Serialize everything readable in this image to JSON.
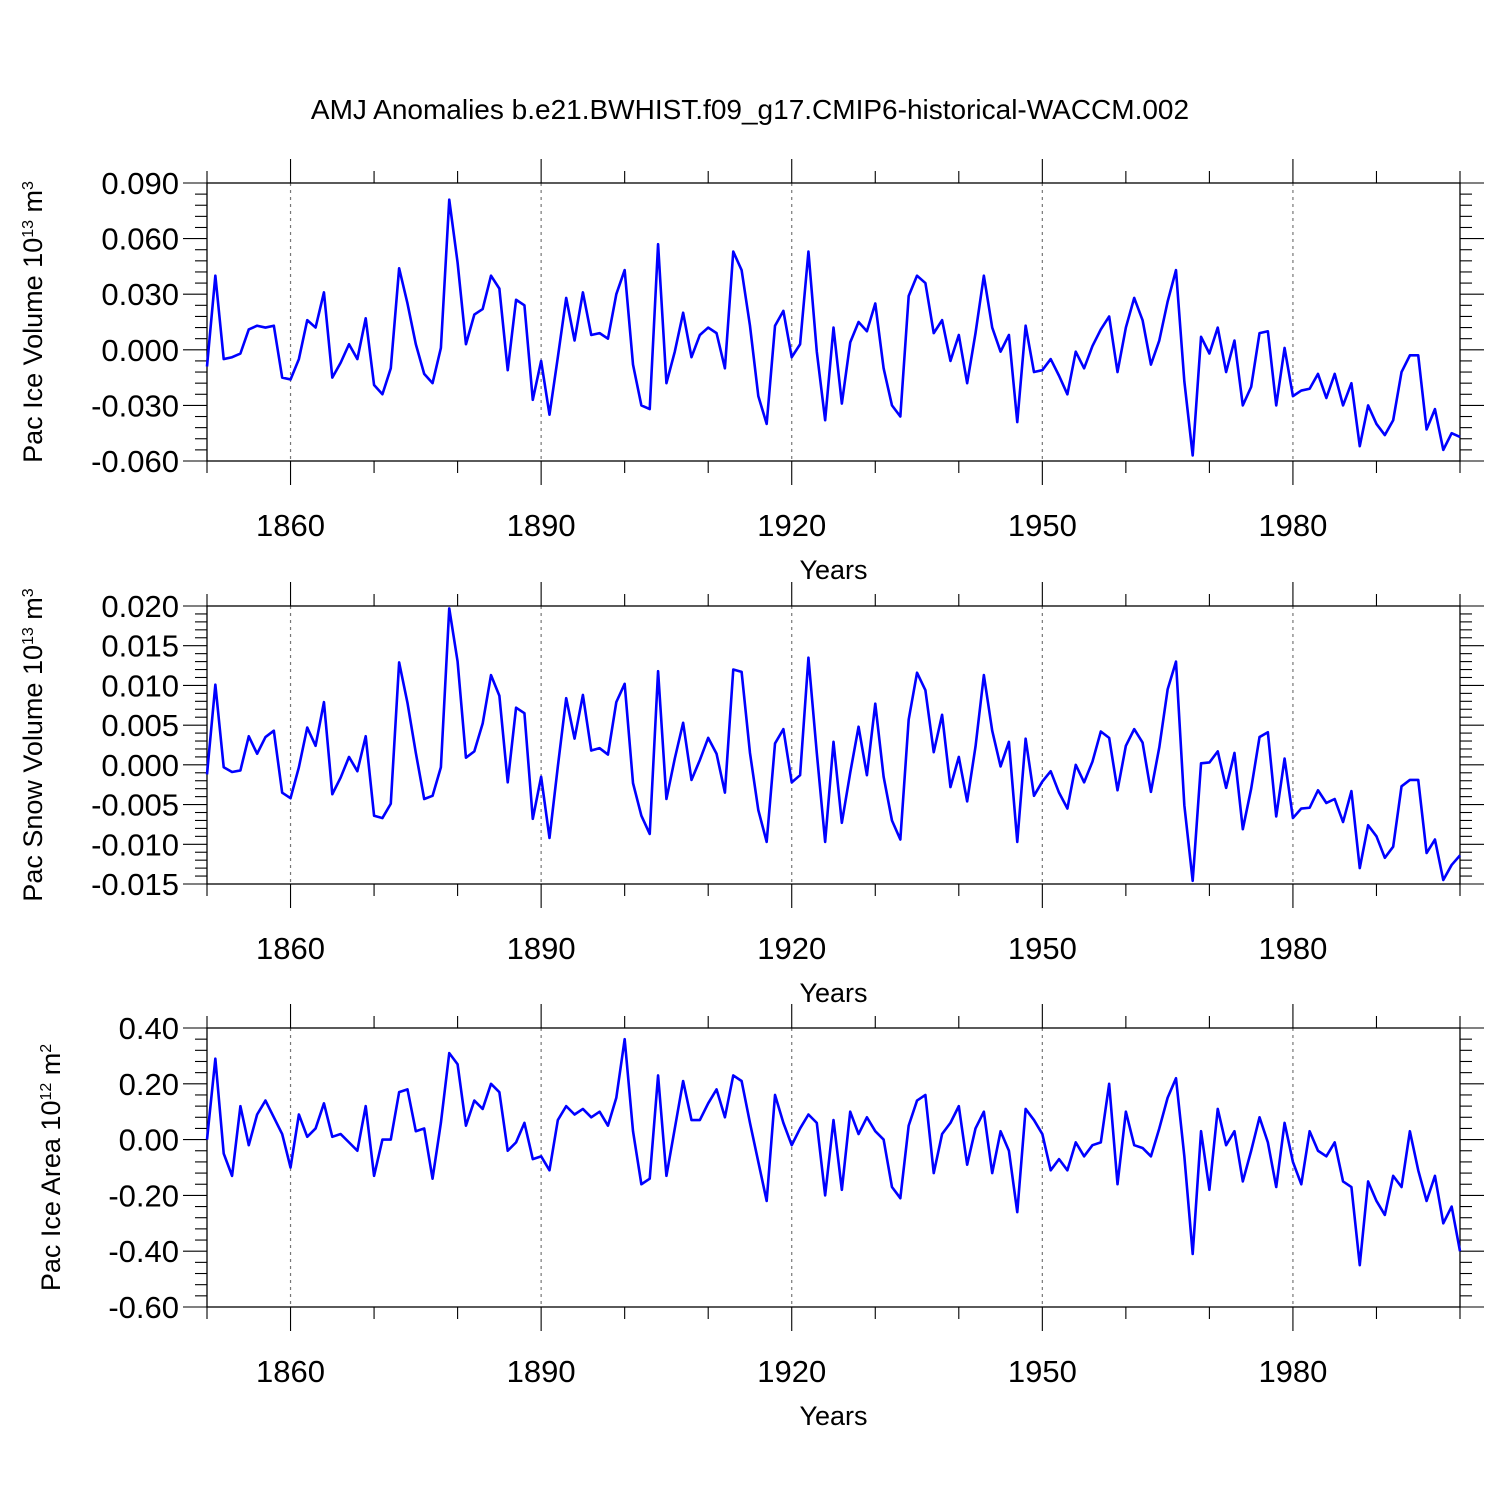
{
  "figure_title": "AMJ Anomalies b.e21.BWHIST.f09_g17.CMIP6-historical-WACCM.002",
  "chart_data": [
    {
      "type": "line",
      "title": "AMJ Anomalies b.e21.BWHIST.f09_g17.CMIP6-historical-WACCM.002",
      "xlabel": "Years",
      "ylabel": {
        "main": "Pac Ice Volume 10",
        "exp": "13",
        "unit": " m",
        "unit_exp": "3"
      },
      "xlim": [
        1850,
        2000
      ],
      "ylim": [
        -0.06,
        0.09
      ],
      "xticks": [
        1860,
        1890,
        1920,
        1950,
        1980
      ],
      "xtick_labels": [
        "1860",
        "1890",
        "1920",
        "1950",
        "1980"
      ],
      "yticks": [
        -0.06,
        -0.03,
        0.0,
        0.03,
        0.06,
        0.09
      ],
      "ytick_labels": [
        "-0.060",
        "-0.030",
        "0.000",
        "0.030",
        "0.060",
        "0.090"
      ],
      "grid": "dashed vertical at major x ticks",
      "color": "#0000ff",
      "x_start": 1850,
      "series": [
        {
          "name": "Pac Ice Volume",
          "values": [
            -0.009,
            0.04,
            -0.005,
            -0.004,
            -0.002,
            0.011,
            0.013,
            0.012,
            0.013,
            -0.015,
            -0.016,
            -0.005,
            0.016,
            0.012,
            0.031,
            -0.015,
            -0.007,
            0.003,
            -0.005,
            0.017,
            -0.019,
            -0.024,
            -0.01,
            0.044,
            0.025,
            0.003,
            -0.013,
            -0.018,
            0.001,
            0.081,
            0.047,
            0.003,
            0.019,
            0.022,
            0.04,
            0.033,
            -0.011,
            0.027,
            0.024,
            -0.027,
            -0.006,
            -0.035,
            -0.004,
            0.028,
            0.005,
            0.031,
            0.008,
            0.009,
            0.006,
            0.03,
            0.043,
            -0.008,
            -0.03,
            -0.032,
            0.057,
            -0.018,
            -0.001,
            0.02,
            -0.004,
            0.008,
            0.012,
            0.009,
            -0.01,
            0.053,
            0.043,
            0.013,
            -0.025,
            -0.04,
            0.013,
            0.021,
            -0.004,
            0.003,
            0.053,
            -0.001,
            -0.038,
            0.012,
            -0.029,
            0.004,
            0.015,
            0.01,
            0.025,
            -0.01,
            -0.03,
            -0.036,
            0.029,
            0.04,
            0.036,
            0.009,
            0.016,
            -0.006,
            0.008,
            -0.018,
            0.009,
            0.04,
            0.012,
            -0.001,
            0.008,
            -0.039,
            0.013,
            -0.012,
            -0.011,
            -0.005,
            -0.014,
            -0.024,
            -0.001,
            -0.01,
            0.002,
            0.011,
            0.018,
            -0.012,
            0.012,
            0.028,
            0.016,
            -0.008,
            0.005,
            0.026,
            0.043,
            -0.017,
            -0.057,
            0.007,
            -0.002,
            0.012,
            -0.012,
            0.005,
            -0.03,
            -0.02,
            0.009,
            0.01,
            -0.03,
            0.001,
            -0.025,
            -0.022,
            -0.021,
            -0.013,
            -0.026,
            -0.013,
            -0.03,
            -0.018,
            -0.052,
            -0.03,
            -0.04,
            -0.046,
            -0.038,
            -0.012,
            -0.003,
            -0.003,
            -0.043,
            -0.032,
            -0.054,
            -0.045,
            -0.047
          ]
        }
      ]
    },
    {
      "type": "line",
      "xlabel": "Years",
      "ylabel": {
        "main": "Pac Snow Volume 10",
        "exp": "13",
        "unit": " m",
        "unit_exp": "3"
      },
      "xlim": [
        1850,
        2000
      ],
      "ylim": [
        -0.015,
        0.02
      ],
      "xticks": [
        1860,
        1890,
        1920,
        1950,
        1980
      ],
      "xtick_labels": [
        "1860",
        "1890",
        "1920",
        "1950",
        "1980"
      ],
      "yticks": [
        -0.015,
        -0.01,
        -0.005,
        0.0,
        0.005,
        0.01,
        0.015,
        0.02
      ],
      "ytick_labels": [
        "-0.015",
        "-0.010",
        "-0.005",
        "0.000",
        "0.005",
        "0.010",
        "0.015",
        "0.020"
      ],
      "grid": "dashed vertical at major x ticks",
      "color": "#0000ff",
      "x_start": 1850,
      "series": [
        {
          "name": "Pac Snow Volume",
          "values": [
            -0.0012,
            0.0101,
            -0.0003,
            -0.0009,
            -0.0007,
            0.0036,
            0.0014,
            0.0035,
            0.0043,
            -0.0035,
            -0.0042,
            -0.0003,
            0.0047,
            0.0024,
            0.0079,
            -0.0037,
            -0.0016,
            0.001,
            -0.0008,
            0.0036,
            -0.0064,
            -0.0067,
            -0.0049,
            0.0129,
            0.0078,
            0.0015,
            -0.0043,
            -0.0039,
            -0.0003,
            0.0197,
            0.013,
            0.0009,
            0.0017,
            0.0052,
            0.0113,
            0.0087,
            -0.0022,
            0.0072,
            0.0065,
            -0.0068,
            -0.0015,
            -0.0092,
            -0.0002,
            0.0084,
            0.0033,
            0.0088,
            0.0018,
            0.0021,
            0.0013,
            0.0079,
            0.0102,
            -0.0023,
            -0.0064,
            -0.0087,
            0.0118,
            -0.0043,
            0.0008,
            0.0053,
            -0.0019,
            0.0006,
            0.0034,
            0.0014,
            -0.0035,
            0.012,
            0.0117,
            0.0015,
            -0.0057,
            -0.0097,
            0.0027,
            0.0045,
            -0.0022,
            -0.0013,
            0.0135,
            0.0015,
            -0.0097,
            0.0029,
            -0.0073,
            -0.001,
            0.0048,
            -0.0013,
            0.0077,
            -0.0015,
            -0.007,
            -0.0094,
            0.0057,
            0.0116,
            0.0094,
            0.0016,
            0.0063,
            -0.0028,
            0.001,
            -0.0046,
            0.0023,
            0.0113,
            0.0043,
            -0.0002,
            0.0029,
            -0.0097,
            0.0033,
            -0.0039,
            -0.0021,
            -0.0008,
            -0.0035,
            -0.0055,
            0.0,
            -0.0022,
            0.0004,
            0.0042,
            0.0034,
            -0.0032,
            0.0024,
            0.0045,
            0.0028,
            -0.0034,
            0.0022,
            0.0095,
            0.013,
            -0.0051,
            -0.0146,
            0.0002,
            0.0003,
            0.0017,
            -0.0029,
            0.0015,
            -0.0081,
            -0.003,
            0.0035,
            0.0041,
            -0.0065,
            0.0008,
            -0.0067,
            -0.0055,
            -0.0054,
            -0.0032,
            -0.0048,
            -0.0043,
            -0.0072,
            -0.0033,
            -0.013,
            -0.0076,
            -0.009,
            -0.0117,
            -0.0103,
            -0.0027,
            -0.0019,
            -0.0019,
            -0.0111,
            -0.0094,
            -0.0145,
            -0.0126,
            -0.0114
          ]
        }
      ]
    },
    {
      "type": "line",
      "xlabel": "Years",
      "ylabel": {
        "main": "Pac Ice Area 10",
        "exp": "12",
        "unit": " m",
        "unit_exp": "2"
      },
      "xlim": [
        1850,
        2000
      ],
      "ylim": [
        -0.6,
        0.4
      ],
      "xticks": [
        1860,
        1890,
        1920,
        1950,
        1980
      ],
      "xtick_labels": [
        "1860",
        "1890",
        "1920",
        "1950",
        "1980"
      ],
      "yticks": [
        -0.6,
        -0.4,
        -0.2,
        0.0,
        0.2,
        0.4
      ],
      "ytick_labels": [
        "-0.60",
        "-0.40",
        "-0.20",
        "0.00",
        "0.20",
        "0.40"
      ],
      "grid": "dashed vertical at major x ticks",
      "color": "#0000ff",
      "x_start": 1850,
      "series": [
        {
          "name": "Pac Ice Area",
          "values": [
            0.0,
            0.29,
            -0.05,
            -0.13,
            0.12,
            -0.02,
            0.09,
            0.14,
            0.08,
            0.02,
            -0.1,
            0.09,
            0.01,
            0.04,
            0.13,
            0.01,
            0.02,
            -0.01,
            -0.04,
            0.12,
            -0.13,
            0.0,
            0.0,
            0.17,
            0.18,
            0.03,
            0.04,
            -0.14,
            0.06,
            0.31,
            0.27,
            0.05,
            0.14,
            0.11,
            0.2,
            0.17,
            -0.04,
            -0.01,
            0.06,
            -0.07,
            -0.06,
            -0.11,
            0.07,
            0.12,
            0.09,
            0.11,
            0.08,
            0.1,
            0.05,
            0.15,
            0.36,
            0.03,
            -0.16,
            -0.14,
            0.23,
            -0.13,
            0.04,
            0.21,
            0.07,
            0.07,
            0.13,
            0.18,
            0.08,
            0.23,
            0.21,
            0.06,
            -0.08,
            -0.22,
            0.16,
            0.06,
            -0.02,
            0.04,
            0.09,
            0.06,
            -0.2,
            0.07,
            -0.18,
            0.1,
            0.02,
            0.08,
            0.03,
            0.0,
            -0.17,
            -0.21,
            0.05,
            0.14,
            0.16,
            -0.12,
            0.02,
            0.06,
            0.12,
            -0.09,
            0.04,
            0.1,
            -0.12,
            0.03,
            -0.04,
            -0.26,
            0.11,
            0.07,
            0.02,
            -0.11,
            -0.07,
            -0.11,
            -0.01,
            -0.06,
            -0.02,
            -0.01,
            0.2,
            -0.16,
            0.1,
            -0.02,
            -0.03,
            -0.06,
            0.04,
            0.15,
            0.22,
            -0.06,
            -0.41,
            0.03,
            -0.18,
            0.11,
            -0.02,
            0.03,
            -0.15,
            -0.04,
            0.08,
            -0.01,
            -0.17,
            0.06,
            -0.08,
            -0.16,
            0.03,
            -0.04,
            -0.06,
            -0.01,
            -0.15,
            -0.17,
            -0.45,
            -0.15,
            -0.22,
            -0.27,
            -0.13,
            -0.17,
            0.03,
            -0.11,
            -0.22,
            -0.13,
            -0.3,
            -0.24,
            -0.4
          ]
        }
      ]
    }
  ]
}
